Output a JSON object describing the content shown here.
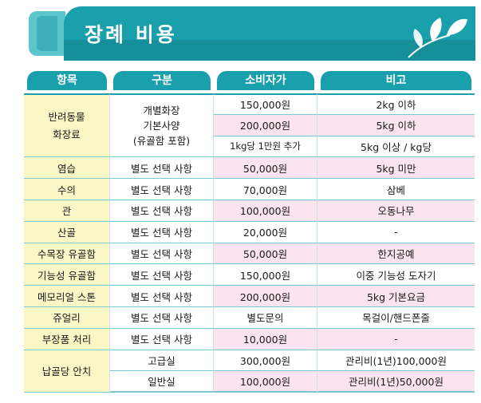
{
  "header": {
    "title": "장례 비용"
  },
  "table": {
    "columns": [
      "항목",
      "구분",
      "소비자가",
      "비고"
    ],
    "pet_cremation": {
      "item": [
        "반려동물",
        "화장료"
      ],
      "type": [
        "개별화장",
        "기본사양",
        "(유골함 포함)"
      ],
      "rows": [
        {
          "price": "150,000원",
          "note": "2kg 이하",
          "price_pink": false,
          "note_pink": false
        },
        {
          "price": "200,000원",
          "note": "5kg 이하",
          "price_pink": true,
          "note_pink": true
        },
        {
          "price": "1kg당 1만원 추가",
          "note": "5kg 이상 / kg당",
          "price_pink": false,
          "note_pink": false
        }
      ]
    },
    "rows": [
      {
        "item": "염습",
        "type": "별도 선택 사항",
        "price": "50,000원",
        "note": "5kg 미만"
      },
      {
        "item": "수의",
        "type": "별도 선택 사항",
        "price": "70,000원",
        "note": "삼베"
      },
      {
        "item": "관",
        "type": "별도 선택 사항",
        "price": "100,000원",
        "note": "오동나무"
      },
      {
        "item": "산골",
        "type": "별도 선택 사항",
        "price": "20,000원",
        "note": "-"
      },
      {
        "item": "수목장 유골함",
        "type": "별도 선택 사항",
        "price": "50,000원",
        "note": "한지공예"
      },
      {
        "item": "기능성 유골함",
        "type": "별도 선택 사항",
        "price": "150,000원",
        "note": "이중 기능성 도자기"
      },
      {
        "item": "메모리얼 스톤",
        "type": "별도 선택 사항",
        "price": "200,000원",
        "note": "5kg 기본요금"
      },
      {
        "item": "쥬얼리",
        "type": "별도 선택 사항",
        "price": "별도문의",
        "note": "목걸이/핸드폰줄"
      },
      {
        "item": "부장품 처리",
        "type": "별도 선택 사항",
        "price": "10,000원",
        "note": "-"
      }
    ],
    "enshrinement": {
      "item": "납골당 안치",
      "rows": [
        {
          "type": "고급실",
          "price": "300,000원",
          "note": "관리비(1년)100,000원"
        },
        {
          "type": "일반실",
          "price": "100,000원",
          "note": "관리비(1년)50,000원"
        }
      ]
    }
  },
  "colors": {
    "teal": "#1aa0ac",
    "item_yellow": "#fbf6c6",
    "pink": "#fbe4ee"
  },
  "icons": {
    "banner_decoration": "sprout-leaf-icon"
  }
}
